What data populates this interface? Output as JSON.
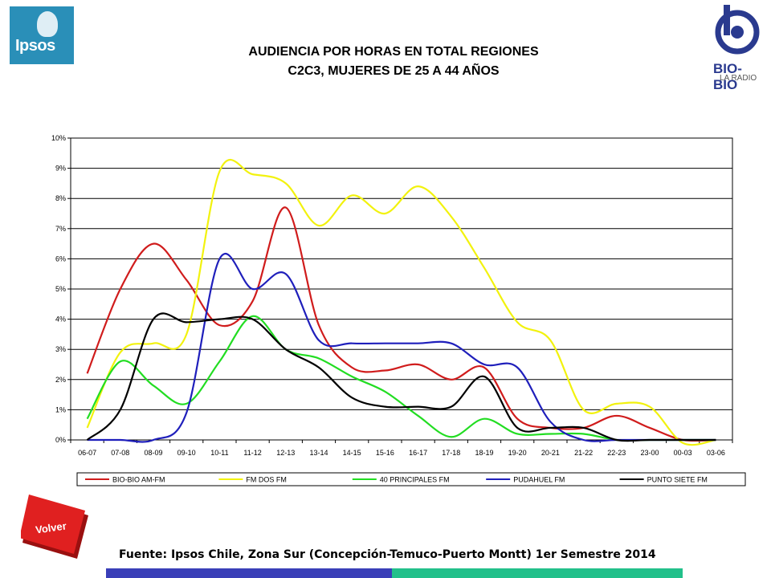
{
  "header": {
    "title_line1": "AUDIENCIA POR HORAS EN TOTAL REGIONES",
    "title_line2": "C2C3, MUJERES DE 25 A 44 AÑOS",
    "logo_left": "Ipsos",
    "logo_right": "BIO-BIO",
    "logo_right_sub": "LA RADIO"
  },
  "volver_label": "Volver",
  "source": "Fuente: Ipsos Chile, Zona Sur (Concepción-Temuco-Puerto Montt) 1er Semestre 2014",
  "colors": {
    "footer_left": "#3a3fb8",
    "footer_right": "#22c08a",
    "volver": "#e02020"
  },
  "chart_data": {
    "type": "line",
    "categories": [
      "06-07",
      "07-08",
      "08-09",
      "09-10",
      "10-11",
      "11-12",
      "12-13",
      "13-14",
      "14-15",
      "15-16",
      "16-17",
      "17-18",
      "18-19",
      "19-20",
      "20-21",
      "21-22",
      "22-23",
      "23-00",
      "00-03",
      "03-06"
    ],
    "ylim": [
      0,
      10
    ],
    "yticks": [
      "0%",
      "1%",
      "2%",
      "3%",
      "4%",
      "5%",
      "6%",
      "7%",
      "8%",
      "9%",
      "10%"
    ],
    "grid": true,
    "legend_position": "bottom",
    "series": [
      {
        "name": "BIO-BIO AM-FM",
        "color": "#d01c1c",
        "values": [
          2.2,
          5.0,
          6.5,
          5.3,
          3.8,
          4.6,
          7.7,
          3.8,
          2.4,
          2.3,
          2.5,
          2.0,
          2.4,
          0.7,
          0.4,
          0.4,
          0.8,
          0.4,
          0.0,
          0.0
        ]
      },
      {
        "name": "FM DOS FM",
        "color": "#f2f20e",
        "values": [
          0.4,
          2.9,
          3.2,
          3.5,
          8.9,
          8.8,
          8.5,
          7.1,
          8.1,
          7.5,
          8.4,
          7.4,
          5.7,
          3.9,
          3.3,
          1.0,
          1.2,
          1.1,
          -0.1,
          0.0
        ]
      },
      {
        "name": "40 PRINCIPALES FM",
        "color": "#22dd22",
        "values": [
          0.7,
          2.6,
          1.8,
          1.2,
          2.6,
          4.1,
          3.0,
          2.7,
          2.1,
          1.6,
          0.8,
          0.1,
          0.7,
          0.2,
          0.2,
          0.2,
          0.0,
          0.0,
          0.0,
          0.0
        ]
      },
      {
        "name": "PUDAHUEL FM",
        "color": "#1f1fbb",
        "values": [
          0.0,
          0.0,
          0.0,
          0.9,
          6.0,
          5.0,
          5.5,
          3.3,
          3.2,
          3.2,
          3.2,
          3.2,
          2.5,
          2.4,
          0.6,
          0.0,
          0.0,
          0.0,
          0.0,
          0.0
        ]
      },
      {
        "name": "PUNTO SIETE FM",
        "color": "#000000",
        "values": [
          0.0,
          1.0,
          4.0,
          3.9,
          4.0,
          4.0,
          3.0,
          2.4,
          1.4,
          1.1,
          1.1,
          1.1,
          2.1,
          0.4,
          0.4,
          0.4,
          0.0,
          0.0,
          0.0,
          0.0
        ]
      }
    ]
  }
}
